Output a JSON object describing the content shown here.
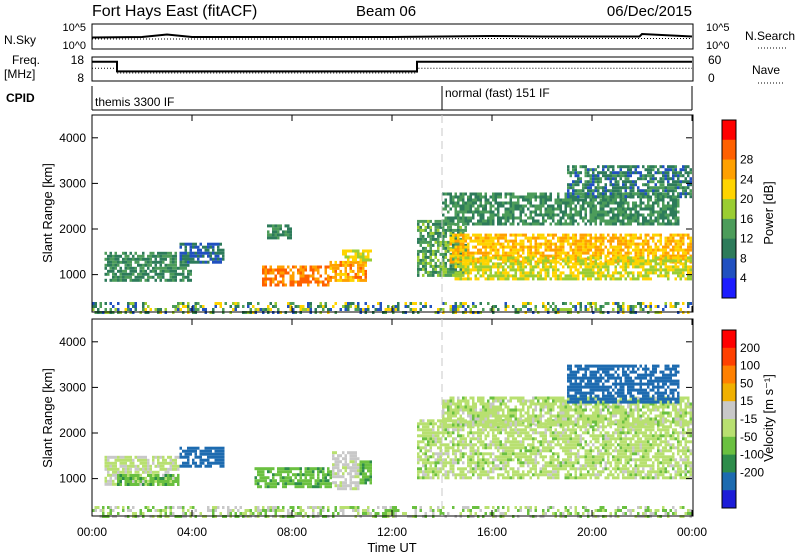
{
  "header": {
    "title": "Fort Hays East (fitACF)",
    "beam": "Beam 06",
    "date": "06/Dec/2015"
  },
  "panels": {
    "nsky": {
      "left_label": "N.Sky",
      "right_label": "N.Search",
      "left_ticks": [
        "10^5",
        "10^0"
      ],
      "right_ticks": [
        "10^5",
        "10^0"
      ]
    },
    "freq": {
      "left_label": "Freq.",
      "left_unit": "[MHz]",
      "right_label": "Nave",
      "left_ticks": [
        "18",
        "8"
      ],
      "right_ticks": [
        "60",
        "0"
      ]
    },
    "cpid": {
      "label": "CPID",
      "segments": [
        "themis 3300 IF",
        "normal (fast) 151 IF"
      ],
      "segment_start_hours": [
        0,
        14
      ]
    }
  },
  "axes": {
    "ylabel": "Slant Range [km]",
    "xlabel": "Time UT",
    "x_ticks": [
      "00:00",
      "04:00",
      "08:00",
      "12:00",
      "16:00",
      "20:00",
      "00:00"
    ],
    "y_ticks": [
      "1000",
      "2000",
      "3000",
      "4000"
    ]
  },
  "colorbars": {
    "power": {
      "label": "Power [dB]",
      "ticks": [
        "4",
        "8",
        "12",
        "16",
        "20",
        "24",
        "28"
      ],
      "colors": [
        "#1c1cff",
        "#2050c0",
        "#2d7b5a",
        "#4c9c5a",
        "#9acd32",
        "#ffd400",
        "#ffa000",
        "#ff6000",
        "#ff0000"
      ]
    },
    "velocity": {
      "label": "Velocity [m s⁻¹]",
      "ticks": [
        "200",
        "100",
        "50",
        "15",
        "-15",
        "-50",
        "-100",
        "-200"
      ],
      "colors": [
        "#1c1cd8",
        "#1d6bb0",
        "#2d8c4a",
        "#6ac040",
        "#b8e070",
        "#c8c8c8",
        "#f0b000",
        "#ff8000",
        "#ff4000",
        "#ff0000"
      ]
    }
  },
  "chart_data": [
    {
      "type": "line",
      "title": "N.Sky / N.Search",
      "x_range_hours": [
        0,
        24
      ],
      "ylim": [
        0,
        5
      ],
      "series": [
        {
          "name": "N.Sky",
          "x": [
            0,
            2,
            3,
            4,
            6,
            8,
            10,
            12,
            14,
            16,
            18,
            20,
            21.9,
            22,
            24
          ],
          "values": [
            2.3,
            2.4,
            2.9,
            2.4,
            2.4,
            2.4,
            2.4,
            2.4,
            2.5,
            2.6,
            2.5,
            2.5,
            2.5,
            3.0,
            2.5
          ]
        },
        {
          "name": "N.Search",
          "x": [
            0,
            4,
            8,
            12,
            16,
            20,
            24
          ],
          "values": [
            2.0,
            2.0,
            2.0,
            2.0,
            2.1,
            2.1,
            2.1
          ]
        }
      ]
    },
    {
      "type": "line",
      "title": "Freq. / Nave",
      "x_range_hours": [
        0,
        24
      ],
      "series": [
        {
          "name": "Freq.",
          "unit": "MHz",
          "x": [
            0,
            1.0,
            1.0,
            13.0,
            13.0,
            24
          ],
          "values": [
            16.0,
            16.0,
            12.0,
            12.0,
            16.0,
            16.0
          ]
        },
        {
          "name": "Nave",
          "x": [
            0,
            1.0,
            1.0,
            13.0,
            13.0,
            24
          ],
          "values": [
            32,
            32,
            20,
            20,
            32,
            32
          ]
        }
      ]
    },
    {
      "type": "heatmap",
      "title": "Power",
      "x_range_hours": [
        0,
        24
      ],
      "ylim": [
        180,
        4500
      ],
      "regions": [
        {
          "x": [
            0.5,
            4.0
          ],
          "y": [
            900,
            1500
          ],
          "value": 12
        },
        {
          "x": [
            3.5,
            5.3
          ],
          "y": [
            1300,
            1700
          ],
          "value": 8
        },
        {
          "x": [
            6.8,
            9.5
          ],
          "y": [
            800,
            1200
          ],
          "value": 28
        },
        {
          "x": [
            7.0,
            8.0
          ],
          "y": [
            1800,
            2100
          ],
          "value": 12
        },
        {
          "x": [
            9.5,
            11.0
          ],
          "y": [
            900,
            1300
          ],
          "value": 26
        },
        {
          "x": [
            10.0,
            11.2
          ],
          "y": [
            1300,
            1550
          ],
          "value": 20
        },
        {
          "x": [
            13.0,
            15.0
          ],
          "y": [
            1000,
            2200
          ],
          "value": 14
        },
        {
          "x": [
            14.3,
            24.0
          ],
          "y": [
            1300,
            1900
          ],
          "value": 24
        },
        {
          "x": [
            14.5,
            24.0
          ],
          "y": [
            900,
            1400
          ],
          "value": 20
        },
        {
          "x": [
            14.0,
            23.5
          ],
          "y": [
            2100,
            2800
          ],
          "value": 12
        },
        {
          "x": [
            19.0,
            24.0
          ],
          "y": [
            2700,
            3400
          ],
          "value": 10
        }
      ]
    },
    {
      "type": "heatmap",
      "title": "Velocity",
      "x_range_hours": [
        0,
        24
      ],
      "ylim": [
        180,
        4500
      ],
      "regions": [
        {
          "x": [
            0.5,
            3.5
          ],
          "y": [
            900,
            1500
          ],
          "value": -10
        },
        {
          "x": [
            1.0,
            3.5
          ],
          "y": [
            900,
            1100
          ],
          "value": 40
        },
        {
          "x": [
            3.5,
            5.3
          ],
          "y": [
            1300,
            1700
          ],
          "value": 150
        },
        {
          "x": [
            6.5,
            8.0
          ],
          "y": [
            800,
            1250
          ],
          "value": 40
        },
        {
          "x": [
            8.0,
            9.6
          ],
          "y": [
            800,
            1250
          ],
          "value": 40
        },
        {
          "x": [
            9.6,
            10.7
          ],
          "y": [
            800,
            1600
          ],
          "value": -30
        },
        {
          "x": [
            10.7,
            11.2
          ],
          "y": [
            900,
            1400
          ],
          "value": 40
        },
        {
          "x": [
            13.0,
            24.0
          ],
          "y": [
            1000,
            2300
          ],
          "value": 0
        },
        {
          "x": [
            14.0,
            24.0
          ],
          "y": [
            2200,
            2800
          ],
          "value": 0
        },
        {
          "x": [
            19.0,
            23.5
          ],
          "y": [
            2700,
            3500
          ],
          "value": 180
        }
      ]
    }
  ]
}
